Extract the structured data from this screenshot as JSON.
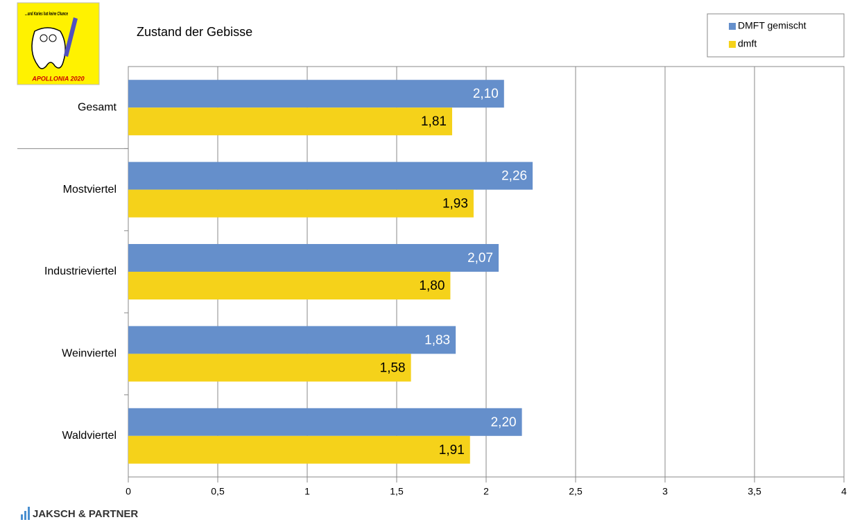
{
  "chart_data": {
    "type": "hbar",
    "title": "Zustand der Gebisse",
    "categories": [
      "Gesamt",
      "Mostviertel",
      "Industrieviertel",
      "Weinviertel",
      "Waldviertel"
    ],
    "series": [
      {
        "name": "DMFT gemischt",
        "color": "#658fcb",
        "label_color": "#ffffff",
        "values": [
          2.1,
          2.26,
          2.07,
          1.83,
          2.2
        ],
        "value_labels": [
          "2,10",
          "2,26",
          "2,07",
          "1,83",
          "2,20"
        ]
      },
      {
        "name": "dmft",
        "color": "#f5d21a",
        "label_color": "#000000",
        "values": [
          1.81,
          1.93,
          1.8,
          1.58,
          1.91
        ],
        "value_labels": [
          "1,81",
          "1,93",
          "1,80",
          "1,58",
          "1,91"
        ]
      }
    ],
    "xlim": [
      0,
      4
    ],
    "xticks": [
      0,
      {
        "value": 0.5,
        "label": "0,5"
      },
      1,
      {
        "value": 1.5,
        "label": "1,5"
      },
      2,
      {
        "value": 2.5,
        "label": "2,5"
      },
      3,
      {
        "value": 3.5,
        "label": "3,5"
      },
      4
    ],
    "grid": true,
    "legend": "top-right"
  },
  "branding": {
    "logo_slogan": "...und Karies hat keine Chance",
    "logo_name": "APOLLONIA 2020",
    "footer": "JAKSCH & PARTNER"
  }
}
